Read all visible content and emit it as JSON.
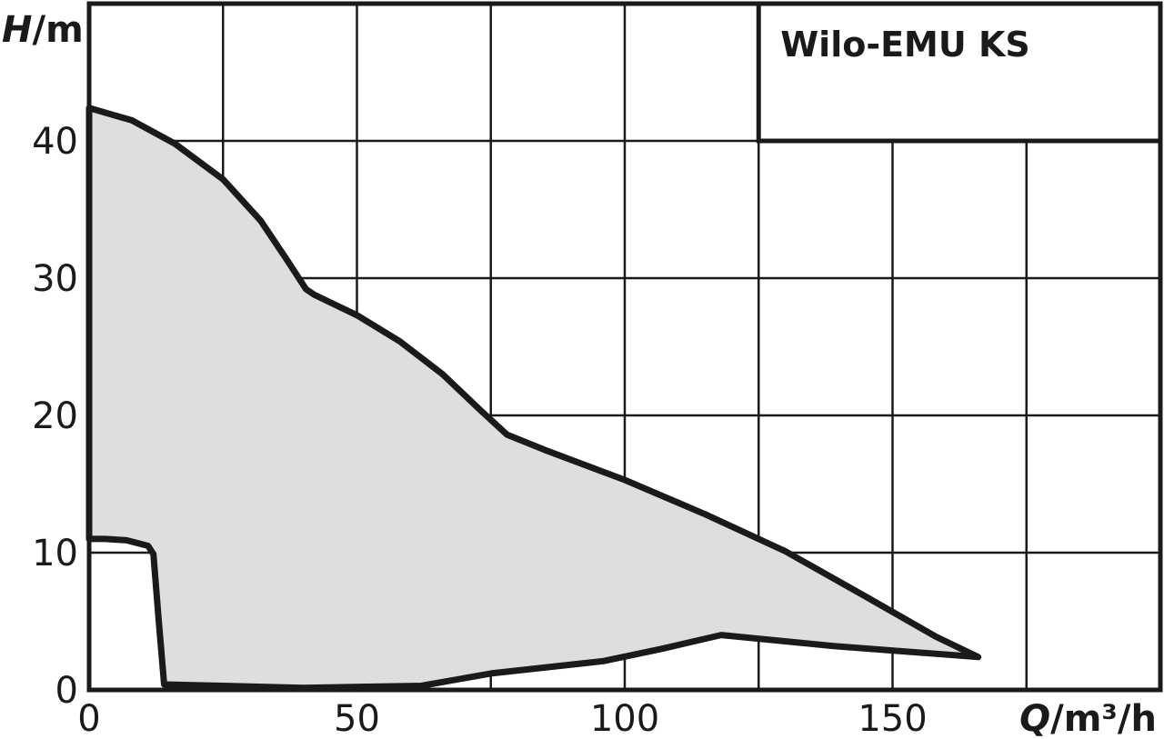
{
  "chart_data": {
    "type": "area",
    "title": "Wilo-EMU KS",
    "xlabel": "Q/m³/h",
    "ylabel": "H/m",
    "ylabel_parts": {
      "symbol": "H",
      "unit": "/m"
    },
    "xlabel_parts": {
      "symbol": "Q",
      "unit": "/m³/h"
    },
    "xlim": [
      0,
      200
    ],
    "ylim": [
      0,
      50
    ],
    "x_ticks": [
      0,
      50,
      100,
      150
    ],
    "y_ticks": [
      0,
      10,
      20,
      30,
      40
    ],
    "grid": true,
    "colors": {
      "fill": "#dedede",
      "stroke": "#1a1a1a",
      "grid": "#1a1a1a",
      "background": "#ffffff"
    },
    "series": [
      {
        "values_xy": [
          [
            0,
            42.4
          ],
          [
            8,
            41.5
          ],
          [
            16,
            39.8
          ],
          [
            25,
            37.2
          ],
          [
            32,
            34.2
          ],
          [
            37,
            31.3
          ],
          [
            40.5,
            29.2
          ],
          [
            42,
            28.8
          ],
          [
            50,
            27.3
          ],
          [
            58,
            25.4
          ],
          [
            66,
            23.0
          ],
          [
            73,
            20.4
          ],
          [
            78,
            18.6
          ],
          [
            85,
            17.5
          ],
          [
            100,
            15.3
          ],
          [
            115,
            12.8
          ],
          [
            130,
            10.1
          ],
          [
            145,
            6.8
          ],
          [
            158,
            3.9
          ],
          [
            166,
            2.4
          ],
          [
            139,
            3.2
          ],
          [
            118,
            4.0
          ],
          [
            107,
            3.0
          ],
          [
            96,
            2.1
          ],
          [
            75,
            1.2
          ],
          [
            62,
            0.3
          ],
          [
            40,
            0.15
          ],
          [
            14,
            0.4
          ],
          [
            13,
            5.0
          ],
          [
            12,
            9.9
          ],
          [
            11,
            10.5
          ],
          [
            7,
            10.9
          ],
          [
            3,
            11.0
          ],
          [
            0,
            11.0
          ],
          [
            0,
            42.4
          ]
        ]
      }
    ]
  }
}
